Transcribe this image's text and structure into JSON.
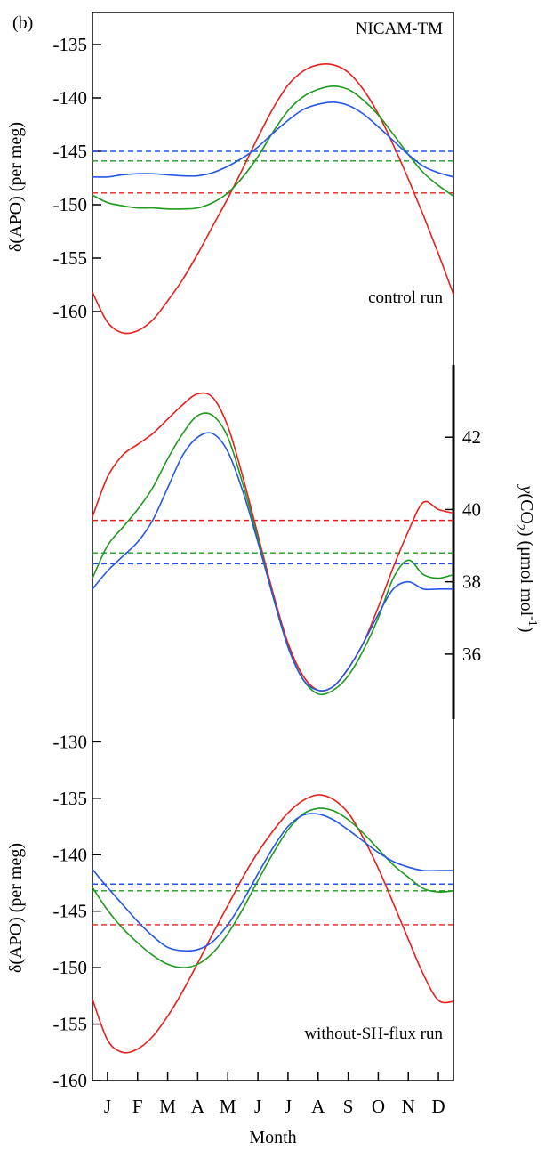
{
  "panel_label": "(b)",
  "model_label": "NICAM-TM",
  "colors": {
    "red": "#e8201c",
    "green": "#1f9a1f",
    "blue": "#2457e6"
  },
  "chart_data": [
    {
      "type": "line",
      "panel": "top",
      "annotation": "control run",
      "ylabel": "δ(APO)  (per meg)",
      "ylim": [
        -165,
        -132
      ],
      "yticks": [
        -160,
        -155,
        -150,
        -145,
        -140,
        -135
      ],
      "x": [
        0,
        0.5,
        1,
        1.5,
        2,
        2.5,
        3,
        3.5,
        4,
        4.5,
        5,
        5.5,
        6,
        6.5,
        7,
        7.5,
        8,
        8.5,
        9,
        9.5,
        10,
        10.5,
        11,
        11.5,
        12
      ],
      "series": [
        {
          "color": "red",
          "values": [
            -158.2,
            -161.0,
            -162.0,
            -161.8,
            -160.8,
            -159.0,
            -157.0,
            -154.6,
            -152.0,
            -149.4,
            -146.6,
            -143.7,
            -141.0,
            -138.8,
            -137.5,
            -136.9,
            -136.9,
            -137.6,
            -139.2,
            -141.5,
            -144.4,
            -147.6,
            -151.0,
            -154.6,
            -158.4
          ]
        },
        {
          "color": "green",
          "values": [
            -149.1,
            -149.8,
            -150.1,
            -150.3,
            -150.3,
            -150.4,
            -150.4,
            -150.3,
            -149.8,
            -148.9,
            -147.4,
            -145.5,
            -143.2,
            -141.2,
            -139.9,
            -139.2,
            -138.9,
            -139.2,
            -140.2,
            -141.6,
            -143.4,
            -145.3,
            -147.0,
            -148.2,
            -149.2
          ]
        },
        {
          "color": "blue",
          "values": [
            -147.4,
            -147.4,
            -147.2,
            -147.1,
            -147.1,
            -147.2,
            -147.3,
            -147.3,
            -147.0,
            -146.4,
            -145.6,
            -144.6,
            -143.3,
            -142.1,
            -141.1,
            -140.6,
            -140.4,
            -140.7,
            -141.5,
            -142.7,
            -144.0,
            -145.3,
            -146.4,
            -147.0,
            -147.4
          ]
        }
      ],
      "means": [
        {
          "color": "red",
          "value": -148.9
        },
        {
          "color": "green",
          "value": -145.9
        },
        {
          "color": "blue",
          "value": -145.0
        }
      ]
    },
    {
      "type": "line",
      "panel": "middle",
      "ylabel": "y(CO2)  (μmol mol-1)",
      "ylim": [
        34.2,
        44.0
      ],
      "yticks": [
        36,
        38,
        40,
        42
      ],
      "x": [
        0,
        0.5,
        1,
        1.5,
        2,
        2.5,
        3,
        3.5,
        4,
        4.5,
        5,
        5.5,
        6,
        6.5,
        7,
        7.5,
        8,
        8.5,
        9,
        9.5,
        10,
        10.5,
        11,
        11.5,
        12
      ],
      "series": [
        {
          "color": "red",
          "values": [
            39.8,
            40.9,
            41.5,
            41.8,
            42.1,
            42.5,
            42.9,
            43.2,
            43.1,
            42.3,
            40.9,
            39.3,
            37.7,
            36.3,
            35.4,
            35.0,
            35.1,
            35.6,
            36.3,
            37.3,
            38.4,
            39.4,
            40.2,
            40.0,
            39.9
          ]
        },
        {
          "color": "green",
          "values": [
            38.1,
            39.0,
            39.5,
            40.0,
            40.6,
            41.4,
            42.1,
            42.6,
            42.6,
            42.0,
            40.7,
            39.2,
            37.6,
            36.2,
            35.3,
            34.9,
            35.0,
            35.4,
            36.1,
            37.0,
            38.1,
            38.6,
            38.2,
            38.1,
            38.2
          ]
        },
        {
          "color": "blue",
          "values": [
            37.8,
            38.3,
            38.7,
            39.1,
            39.7,
            40.6,
            41.5,
            42.0,
            42.1,
            41.6,
            40.5,
            39.1,
            37.6,
            36.2,
            35.3,
            35.0,
            35.1,
            35.6,
            36.3,
            37.1,
            37.8,
            38.0,
            37.8,
            37.8,
            37.8
          ]
        }
      ],
      "means": [
        {
          "color": "red",
          "value": 39.7
        },
        {
          "color": "green",
          "value": 38.8
        },
        {
          "color": "blue",
          "value": 38.5
        }
      ]
    },
    {
      "type": "line",
      "panel": "bottom",
      "annotation": "without-SH-flux run",
      "ylabel": "δ(APO)  (per meg)",
      "ylim": [
        -160,
        -128
      ],
      "yticks": [
        -160,
        -155,
        -150,
        -145,
        -140,
        -135,
        -130
      ],
      "xlabel": "Month",
      "x": [
        0,
        0.5,
        1,
        1.5,
        2,
        2.5,
        3,
        3.5,
        4,
        4.5,
        5,
        5.5,
        6,
        6.5,
        7,
        7.5,
        8,
        8.5,
        9,
        9.5,
        10,
        10.5,
        11,
        11.5,
        12
      ],
      "xticks": [
        "J",
        "F",
        "M",
        "A",
        "M",
        "J",
        "J",
        "A",
        "S",
        "O",
        "N",
        "D"
      ],
      "series": [
        {
          "color": "red",
          "values": [
            -152.8,
            -156.4,
            -157.5,
            -157.2,
            -156.1,
            -154.3,
            -152.1,
            -149.6,
            -147.0,
            -144.5,
            -142.0,
            -139.8,
            -137.9,
            -136.3,
            -135.2,
            -134.7,
            -135.1,
            -136.3,
            -138.5,
            -141.2,
            -144.3,
            -147.5,
            -150.6,
            -152.9,
            -153.0
          ]
        },
        {
          "color": "green",
          "values": [
            -142.9,
            -144.9,
            -146.5,
            -147.8,
            -148.9,
            -149.7,
            -150.0,
            -149.7,
            -148.7,
            -147.0,
            -144.8,
            -142.3,
            -139.9,
            -137.8,
            -136.4,
            -135.9,
            -136.1,
            -136.9,
            -138.1,
            -139.5,
            -140.9,
            -142.0,
            -143.0,
            -143.3,
            -143.2
          ]
        },
        {
          "color": "blue",
          "values": [
            -141.3,
            -142.9,
            -144.4,
            -145.9,
            -147.2,
            -148.2,
            -148.5,
            -148.4,
            -147.7,
            -146.2,
            -144.1,
            -141.7,
            -139.4,
            -137.5,
            -136.5,
            -136.4,
            -136.9,
            -137.8,
            -138.8,
            -139.8,
            -140.6,
            -141.1,
            -141.4,
            -141.4,
            -141.4
          ]
        }
      ],
      "means": [
        {
          "color": "red",
          "value": -146.2
        },
        {
          "color": "green",
          "value": -143.2
        },
        {
          "color": "blue",
          "value": -142.6
        }
      ]
    }
  ]
}
